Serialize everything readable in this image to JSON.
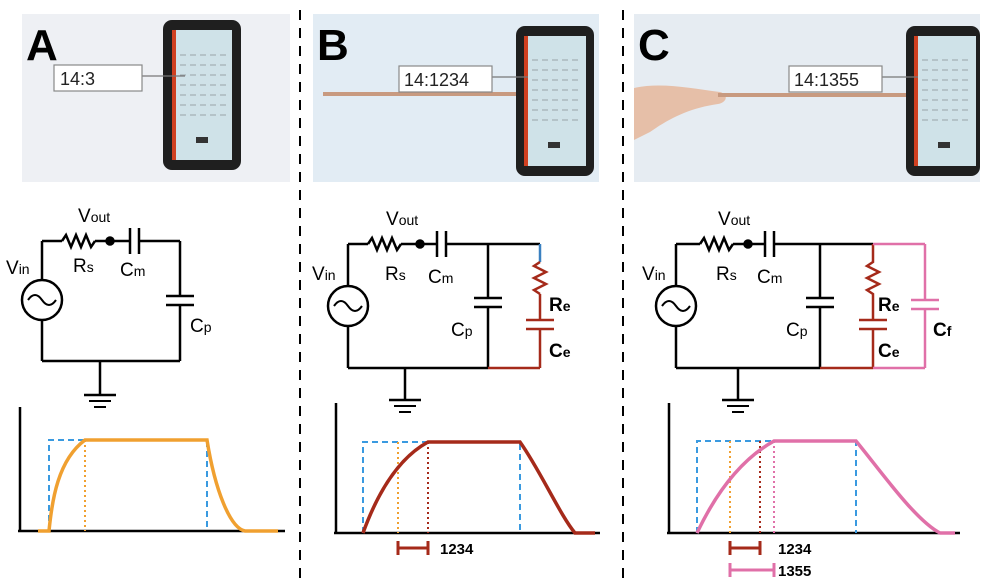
{
  "panels": [
    {
      "letter": "A",
      "readout": "14:3",
      "labels": {
        "vout": "V",
        "vout_sub": "out",
        "vin": "V",
        "vin_sub": "in",
        "rs": "R",
        "rs_sub": "s",
        "cm": "C",
        "cm_sub": "m",
        "cp": "C",
        "cp_sub": "p"
      }
    },
    {
      "letter": "B",
      "readout": "14:1234",
      "labels": {
        "vout": "V",
        "vout_sub": "out",
        "vin": "V",
        "vin_sub": "in",
        "rs": "R",
        "rs_sub": "s",
        "cm": "C",
        "cm_sub": "m",
        "cp": "C",
        "cp_sub": "p",
        "re": "R",
        "re_sub": "e",
        "ce": "C",
        "ce_sub": "e"
      },
      "delays": [
        "1234"
      ]
    },
    {
      "letter": "C",
      "readout": "14:1355",
      "labels": {
        "vout": "V",
        "vout_sub": "out",
        "vin": "V",
        "vin_sub": "in",
        "rs": "R",
        "rs_sub": "s",
        "cm": "C",
        "cm_sub": "m",
        "cp": "C",
        "cp_sub": "p",
        "re": "R",
        "re_sub": "e",
        "ce": "C",
        "ce_sub": "e",
        "cf": "C",
        "cf_sub": "f"
      },
      "delays": [
        "1234",
        "1355"
      ]
    }
  ],
  "colors": {
    "orange": "#f0a030",
    "darkred": "#a52a1a",
    "pink": "#e070a8",
    "blue_dashed": "#3a9ae0",
    "ground": "#000000"
  }
}
